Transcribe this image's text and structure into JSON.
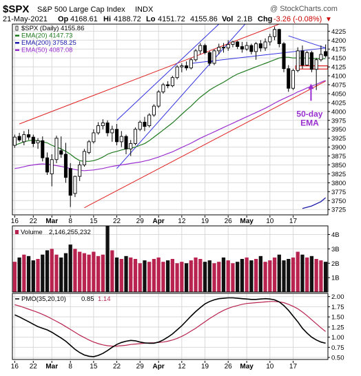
{
  "header": {
    "symbol": "$SPX",
    "name": "S&P 500 Large Cap Index",
    "exchange": "INDX",
    "watermark": "@ StockCharts.com",
    "date": "21-May-2021",
    "open_label": "Op",
    "open": "4168.61",
    "high_label": "Hi",
    "high": "4188.72",
    "low_label": "Lo",
    "low": "4151.72",
    "close": "4155.86",
    "vol_label": "Vol",
    "vol": "2.1B",
    "chg_label": "Chg",
    "chg": "-3.26 (-0.08%)",
    "chg_marker": "▼"
  },
  "colors": {
    "background": "#ffffff",
    "panel_border": "#000000",
    "grid": "#d9d9d9",
    "candle_up_outline": "#000000",
    "candle_fill": "#ffffff",
    "ema20": "#1e7a1e",
    "ema200": "#1a1aaa",
    "ema50": "#9a2fd0",
    "channel_red": "#e02020",
    "channel_blue": "#3030e0",
    "annotation": "#9a2fd0",
    "volume_up": "#b8234f",
    "volume_down": "#111111",
    "pmo_line": "#000000",
    "pmo_signal": "#b8234f",
    "chg_negative": "#cc0000"
  },
  "x_axis": {
    "tick_labels": [
      "16",
      "22",
      "Mar",
      "8",
      "15",
      "22",
      "29",
      "Apr",
      "12",
      "19",
      "26",
      "May",
      "10",
      "17"
    ],
    "bold_labels": [
      "Mar",
      "Apr",
      "May"
    ]
  },
  "chart_data": [
    {
      "type": "candlestick",
      "legend": [
        {
          "label": "$SPX (Daily) 4155.86",
          "icon": "candle-icon"
        },
        {
          "label": "EMA(20) 4147.73",
          "color": "#1e7a1e"
        },
        {
          "label": "EMA(200) 3758.25",
          "color": "#1a1aaa"
        },
        {
          "label": "EMA(50) 4087.08",
          "color": "#9a2fd0"
        }
      ],
      "ylim": [
        3710,
        4245
      ],
      "y_ticks": [
        3725,
        3750,
        3775,
        3800,
        3825,
        3850,
        3875,
        3900,
        3925,
        3950,
        3975,
        4000,
        4025,
        4050,
        4075,
        4100,
        4125,
        4150,
        4175,
        4200,
        4225
      ],
      "grid": true,
      "annotation": {
        "line1": "50-day",
        "line2": "EMA"
      },
      "candles": [
        {
          "o": 3905,
          "h": 3935,
          "l": 3898,
          "c": 3928
        },
        {
          "o": 3930,
          "h": 3940,
          "l": 3915,
          "c": 3920
        },
        {
          "o": 3915,
          "h": 3945,
          "l": 3905,
          "c": 3935
        },
        {
          "o": 3935,
          "h": 3950,
          "l": 3920,
          "c": 3928
        },
        {
          "o": 3928,
          "h": 3935,
          "l": 3900,
          "c": 3910
        },
        {
          "o": 3912,
          "h": 3925,
          "l": 3895,
          "c": 3918
        },
        {
          "o": 3918,
          "h": 3930,
          "l": 3860,
          "c": 3870
        },
        {
          "o": 3870,
          "h": 3885,
          "l": 3822,
          "c": 3830
        },
        {
          "o": 3825,
          "h": 3880,
          "l": 3790,
          "c": 3865
        },
        {
          "o": 3865,
          "h": 3932,
          "l": 3855,
          "c": 3925
        },
        {
          "o": 3890,
          "h": 3930,
          "l": 3870,
          "c": 3880
        },
        {
          "o": 3880,
          "h": 3912,
          "l": 3800,
          "c": 3815
        },
        {
          "o": 3840,
          "h": 3855,
          "l": 3732,
          "c": 3765
        },
        {
          "o": 3770,
          "h": 3820,
          "l": 3760,
          "c": 3818
        },
        {
          "o": 3818,
          "h": 3860,
          "l": 3805,
          "c": 3850
        },
        {
          "o": 3850,
          "h": 3895,
          "l": 3845,
          "c": 3888
        },
        {
          "o": 3885,
          "h": 3920,
          "l": 3880,
          "c": 3915
        },
        {
          "o": 3915,
          "h": 3950,
          "l": 3910,
          "c": 3940
        },
        {
          "o": 3940,
          "h": 3970,
          "l": 3935,
          "c": 3960
        },
        {
          "o": 3960,
          "h": 3978,
          "l": 3950,
          "c": 3968
        },
        {
          "o": 3968,
          "h": 3975,
          "l": 3930,
          "c": 3940
        },
        {
          "o": 3940,
          "h": 3960,
          "l": 3915,
          "c": 3950
        },
        {
          "o": 3950,
          "h": 3965,
          "l": 3905,
          "c": 3915
        },
        {
          "o": 3915,
          "h": 3945,
          "l": 3900,
          "c": 3930
        },
        {
          "o": 3930,
          "h": 3935,
          "l": 3880,
          "c": 3895
        },
        {
          "o": 3895,
          "h": 3920,
          "l": 3875,
          "c": 3910
        },
        {
          "o": 3910,
          "h": 3955,
          "l": 3905,
          "c": 3950
        },
        {
          "o": 3950,
          "h": 3975,
          "l": 3945,
          "c": 3970
        },
        {
          "o": 3970,
          "h": 3985,
          "l": 3945,
          "c": 3958
        },
        {
          "o": 3960,
          "h": 3995,
          "l": 3955,
          "c": 3990
        },
        {
          "o": 3990,
          "h": 4020,
          "l": 3985,
          "c": 4015
        },
        {
          "o": 4015,
          "h": 4060,
          "l": 4010,
          "c": 4055
        },
        {
          "o": 4055,
          "h": 4080,
          "l": 4050,
          "c": 4075
        },
        {
          "o": 4075,
          "h": 4085,
          "l": 4065,
          "c": 4072
        },
        {
          "o": 4072,
          "h": 4100,
          "l": 4068,
          "c": 4095
        },
        {
          "o": 4095,
          "h": 4130,
          "l": 4090,
          "c": 4125
        },
        {
          "o": 4125,
          "h": 4135,
          "l": 4110,
          "c": 4128
        },
        {
          "o": 4128,
          "h": 4140,
          "l": 4115,
          "c": 4122
        },
        {
          "o": 4122,
          "h": 4150,
          "l": 4118,
          "c": 4145
        },
        {
          "o": 4145,
          "h": 4175,
          "l": 4140,
          "c": 4170
        },
        {
          "o": 4170,
          "h": 4192,
          "l": 4160,
          "c": 4185
        },
        {
          "o": 4185,
          "h": 4190,
          "l": 4160,
          "c": 4165
        },
        {
          "o": 4165,
          "h": 4170,
          "l": 4128,
          "c": 4135
        },
        {
          "o": 4135,
          "h": 4175,
          "l": 4130,
          "c": 4170
        },
        {
          "o": 4170,
          "h": 4190,
          "l": 4160,
          "c": 4180
        },
        {
          "o": 4180,
          "h": 4192,
          "l": 4165,
          "c": 4178
        },
        {
          "o": 4178,
          "h": 4200,
          "l": 4170,
          "c": 4188
        },
        {
          "o": 4188,
          "h": 4198,
          "l": 4180,
          "c": 4195
        },
        {
          "o": 4195,
          "h": 4198,
          "l": 4175,
          "c": 4182
        },
        {
          "o": 4182,
          "h": 4195,
          "l": 4165,
          "c": 4175
        },
        {
          "o": 4175,
          "h": 4195,
          "l": 4170,
          "c": 4185
        },
        {
          "o": 4185,
          "h": 4190,
          "l": 4160,
          "c": 4168
        },
        {
          "o": 4168,
          "h": 4195,
          "l": 4145,
          "c": 4190
        },
        {
          "o": 4190,
          "h": 4200,
          "l": 4168,
          "c": 4178
        },
        {
          "o": 4178,
          "h": 4205,
          "l": 4170,
          "c": 4195
        },
        {
          "o": 4195,
          "h": 4218,
          "l": 4185,
          "c": 4210
        },
        {
          "o": 4210,
          "h": 4238,
          "l": 4200,
          "c": 4230
        },
        {
          "o": 4230,
          "h": 4232,
          "l": 4180,
          "c": 4190
        },
        {
          "o": 4190,
          "h": 4195,
          "l": 4110,
          "c": 4120
        },
        {
          "o": 4120,
          "h": 4130,
          "l": 4055,
          "c": 4065
        },
        {
          "o": 4065,
          "h": 4120,
          "l": 4060,
          "c": 4115
        },
        {
          "o": 4115,
          "h": 4180,
          "l": 4110,
          "c": 4170
        },
        {
          "o": 4170,
          "h": 4185,
          "l": 4120,
          "c": 4130
        },
        {
          "o": 4130,
          "h": 4170,
          "l": 4128,
          "c": 4165
        },
        {
          "o": 4165,
          "h": 4170,
          "l": 4110,
          "c": 4118
        },
        {
          "o": 4118,
          "h": 4150,
          "l": 4060,
          "c": 4145
        },
        {
          "o": 4145,
          "h": 4185,
          "l": 4140,
          "c": 4160
        },
        {
          "o": 4168,
          "h": 4188,
          "l": 4151,
          "c": 4156
        }
      ],
      "ema20": [
        3905,
        3910,
        3915,
        3918,
        3920,
        3918,
        3915,
        3912,
        3905,
        3900,
        3895,
        3888,
        3880,
        3870,
        3862,
        3860,
        3860,
        3862,
        3866,
        3872,
        3880,
        3885,
        3888,
        3892,
        3895,
        3897,
        3900,
        3905,
        3910,
        3918,
        3928,
        3938,
        3948,
        3958,
        3968,
        3980,
        3992,
        4004,
        4015,
        4028,
        4040,
        4050,
        4060,
        4068,
        4075,
        4082,
        4090,
        4098,
        4105,
        4110,
        4115,
        4120,
        4125,
        4130,
        4135,
        4140,
        4145,
        4150,
        4152,
        4152,
        4150,
        4150,
        4150,
        4150,
        4149,
        4148,
        4148,
        4148
      ],
      "ema50": [
        3840,
        3842,
        3845,
        3848,
        3850,
        3852,
        3853,
        3852,
        3850,
        3848,
        3846,
        3843,
        3840,
        3837,
        3835,
        3834,
        3835,
        3836,
        3838,
        3840,
        3843,
        3846,
        3848,
        3850,
        3852,
        3854,
        3856,
        3858,
        3861,
        3864,
        3868,
        3872,
        3877,
        3882,
        3887,
        3893,
        3899,
        3905,
        3911,
        3918,
        3925,
        3931,
        3937,
        3943,
        3949,
        3955,
        3961,
        3967,
        3973,
        3979,
        3985,
        3991,
        3997,
        4003,
        4009,
        4016,
        4023,
        4030,
        4036,
        4042,
        4048,
        4055,
        4060,
        4066,
        4071,
        4076,
        4082,
        4087
      ],
      "ema200_segment": [
        {
          "i": 62,
          "v": 3728
        },
        {
          "i": 64,
          "v": 3735
        },
        {
          "i": 66,
          "v": 3747
        },
        {
          "i": 67,
          "v": 3758
        }
      ],
      "trendlines": [
        {
          "color": "red",
          "points": [
            {
              "i": 1,
              "v": 3965
            },
            {
              "i": 58,
              "v": 4250
            }
          ]
        },
        {
          "color": "red",
          "points": [
            {
              "i": 15,
              "v": 3730
            },
            {
              "i": 67,
              "v": 4085
            }
          ]
        },
        {
          "color": "blue",
          "points": [
            {
              "i": 22,
              "v": 3840
            },
            {
              "i": 50,
              "v": 4250
            }
          ]
        },
        {
          "color": "blue",
          "points": [
            {
              "i": 22,
              "v": 3975
            },
            {
              "i": 44,
              "v": 4245
            }
          ]
        },
        {
          "color": "blue",
          "points": [
            {
              "i": 38,
              "v": 4135
            },
            {
              "i": 67,
              "v": 4178
            }
          ]
        },
        {
          "color": "blue",
          "points": [
            {
              "i": 59,
              "v": 4212
            },
            {
              "i": 67,
              "v": 4178
            }
          ]
        }
      ],
      "support_zone": [
        4119,
        4128
      ]
    },
    {
      "type": "bar",
      "legend_label": "Volume",
      "legend_value": "2,146,255,232",
      "unit_labels": [
        "1B",
        "2B",
        "3B",
        "4B"
      ],
      "y_ticks": [
        1,
        2,
        3,
        4
      ],
      "ylim": [
        0,
        4.6
      ],
      "values": [
        2.1,
        2.4,
        2.6,
        2.5,
        2.2,
        2.3,
        2.6,
        2.9,
        3.0,
        2.6,
        2.4,
        2.7,
        3.3,
        3.0,
        2.8,
        2.7,
        2.6,
        2.8,
        2.5,
        2.6,
        4.8,
        2.9,
        2.4,
        2.3,
        2.5,
        2.4,
        2.3,
        2.0,
        2.2,
        2.1,
        2.3,
        2.4,
        2.1,
        2.2,
        2.3,
        2.0,
        2.1,
        2.0,
        2.2,
        2.4,
        2.3,
        2.1,
        2.2,
        2.0,
        2.1,
        2.4,
        2.2,
        2.0,
        2.1,
        2.3,
        2.4,
        2.2,
        2.3,
        2.5,
        2.1,
        2.2,
        2.4,
        2.6,
        2.2,
        2.3,
        2.4,
        2.8,
        2.6,
        2.4,
        2.5,
        2.3,
        2.2,
        2.1
      ]
    },
    {
      "type": "line",
      "legend_label": "PMO(35,20,10)",
      "pmo_value": "0.85",
      "signal_value": "1.14",
      "y_ticks": [
        0.5,
        0.75,
        1.0,
        1.25,
        1.5,
        1.75,
        2.0
      ],
      "tick_labels": [
        "0.50",
        "0.75",
        "1.00",
        "1.25",
        "1.50",
        "1.75",
        "2.00"
      ],
      "ylim": [
        0.45,
        2.08
      ],
      "pmo": [
        1.55,
        1.5,
        1.44,
        1.38,
        1.32,
        1.26,
        1.22,
        1.18,
        1.12,
        1.05,
        0.98,
        0.9,
        0.8,
        0.7,
        0.62,
        0.56,
        0.53,
        0.52,
        0.55,
        0.6,
        0.67,
        0.75,
        0.82,
        0.87,
        0.9,
        0.92,
        0.91,
        0.88,
        0.86,
        0.85,
        0.85,
        0.88,
        0.93,
        1.0,
        1.08,
        1.18,
        1.28,
        1.4,
        1.52,
        1.63,
        1.73,
        1.82,
        1.88,
        1.92,
        1.95,
        1.96,
        1.97,
        1.97,
        1.96,
        1.95,
        1.94,
        1.93,
        1.93,
        1.94,
        1.95,
        1.94,
        1.92,
        1.87,
        1.78,
        1.66,
        1.52,
        1.38,
        1.22,
        1.1,
        1.0,
        0.93,
        0.88,
        0.85
      ],
      "signal": [
        1.8,
        1.77,
        1.73,
        1.69,
        1.65,
        1.61,
        1.56,
        1.51,
        1.45,
        1.39,
        1.33,
        1.26,
        1.19,
        1.12,
        1.05,
        0.99,
        0.93,
        0.88,
        0.84,
        0.81,
        0.79,
        0.78,
        0.78,
        0.79,
        0.8,
        0.82,
        0.83,
        0.84,
        0.85,
        0.86,
        0.86,
        0.87,
        0.88,
        0.9,
        0.93,
        0.97,
        1.02,
        1.08,
        1.15,
        1.22,
        1.3,
        1.38,
        1.46,
        1.53,
        1.6,
        1.66,
        1.71,
        1.75,
        1.78,
        1.81,
        1.83,
        1.84,
        1.85,
        1.86,
        1.87,
        1.88,
        1.88,
        1.87,
        1.85,
        1.81,
        1.76,
        1.7,
        1.62,
        1.53,
        1.43,
        1.33,
        1.23,
        1.14
      ]
    }
  ]
}
